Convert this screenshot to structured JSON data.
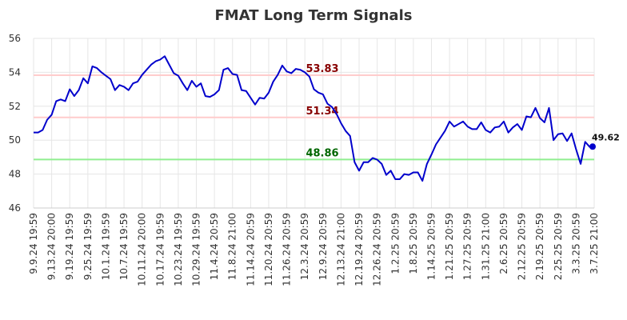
{
  "chart_data": {
    "type": "line",
    "title": "FMAT Long Term Signals",
    "xlabel": "",
    "ylabel": "",
    "ylim": [
      46,
      56
    ],
    "yticks": [
      46,
      48,
      50,
      52,
      54,
      56
    ],
    "grid": true,
    "x_tick_labels": [
      "9.9.24 19:59",
      "9.13.24 20:00",
      "9.19.24 19:59",
      "9.25.24 19:59",
      "10.1.24 19:59",
      "10.7.24 19:59",
      "10.11.24 20:00",
      "10.17.24 19:59",
      "10.23.24 19:59",
      "10.29.24 19:59",
      "11.4.24 20:59",
      "11.8.24 21:00",
      "11.14.24 20:59",
      "11.20.24 20:59",
      "11.26.24 20:59",
      "12.3.24 20:59",
      "12.9.24 20:59",
      "12.13.24 21:00",
      "12.19.24 20:59",
      "12.26.24 20:59",
      "1.2.25 20:59",
      "1.8.25 20:59",
      "1.14.25 20:59",
      "1.21.25 20:59",
      "1.27.25 20:59",
      "1.31.25 21:00",
      "2.6.25 20:59",
      "2.12.25 20:59",
      "2.19.25 20:59",
      "2.25.25 20:59",
      "3.3.25 20:59",
      "3.7.25 21:00"
    ],
    "series": [
      {
        "color": "#0000cc",
        "values": [
          50.45,
          50.45,
          50.6,
          51.2,
          51.5,
          52.3,
          52.4,
          52.3,
          53.0,
          52.6,
          52.95,
          53.65,
          53.35,
          54.35,
          54.25,
          54.0,
          53.8,
          53.6,
          52.95,
          53.25,
          53.15,
          52.95,
          53.35,
          53.45,
          53.85,
          54.15,
          54.45,
          54.65,
          54.75,
          54.95,
          54.45,
          53.95,
          53.8,
          53.35,
          52.95,
          53.5,
          53.15,
          53.35,
          52.6,
          52.55,
          52.7,
          52.95,
          54.15,
          54.25,
          53.9,
          53.85,
          52.95,
          52.9,
          52.5,
          52.1,
          52.5,
          52.45,
          52.8,
          53.45,
          53.85,
          54.4,
          54.05,
          53.95,
          54.2,
          54.15,
          54.0,
          53.75,
          53.0,
          52.8,
          52.7,
          52.15,
          51.95,
          51.55,
          51.0,
          50.55,
          50.25,
          48.7,
          48.2,
          48.7,
          48.7,
          48.95,
          48.85,
          48.6,
          47.95,
          48.2,
          47.7,
          47.7,
          48.0,
          47.95,
          48.1,
          48.1,
          47.6,
          48.6,
          49.15,
          49.75,
          50.15,
          50.55,
          51.1,
          50.8,
          50.95,
          51.1,
          50.8,
          50.65,
          50.65,
          51.05,
          50.6,
          50.45,
          50.75,
          50.8,
          51.1,
          50.45,
          50.75,
          50.95,
          50.6,
          51.4,
          51.35,
          51.9,
          51.3,
          51.05,
          51.9,
          50.0,
          50.35,
          50.4,
          49.95,
          50.4,
          49.45,
          48.6,
          49.9,
          49.6,
          49.62
        ]
      }
    ],
    "horizontal_lines": [
      {
        "value": 53.83,
        "label": "53.83",
        "line_color": "#ffcccc",
        "label_color": "#880000"
      },
      {
        "value": 51.34,
        "label": "51.34",
        "line_color": "#ffcccc",
        "label_color": "#880000"
      },
      {
        "value": 48.86,
        "label": "48.86",
        "line_color": "#90ee90",
        "label_color": "#006600"
      }
    ],
    "last_value_label": "49.62"
  }
}
